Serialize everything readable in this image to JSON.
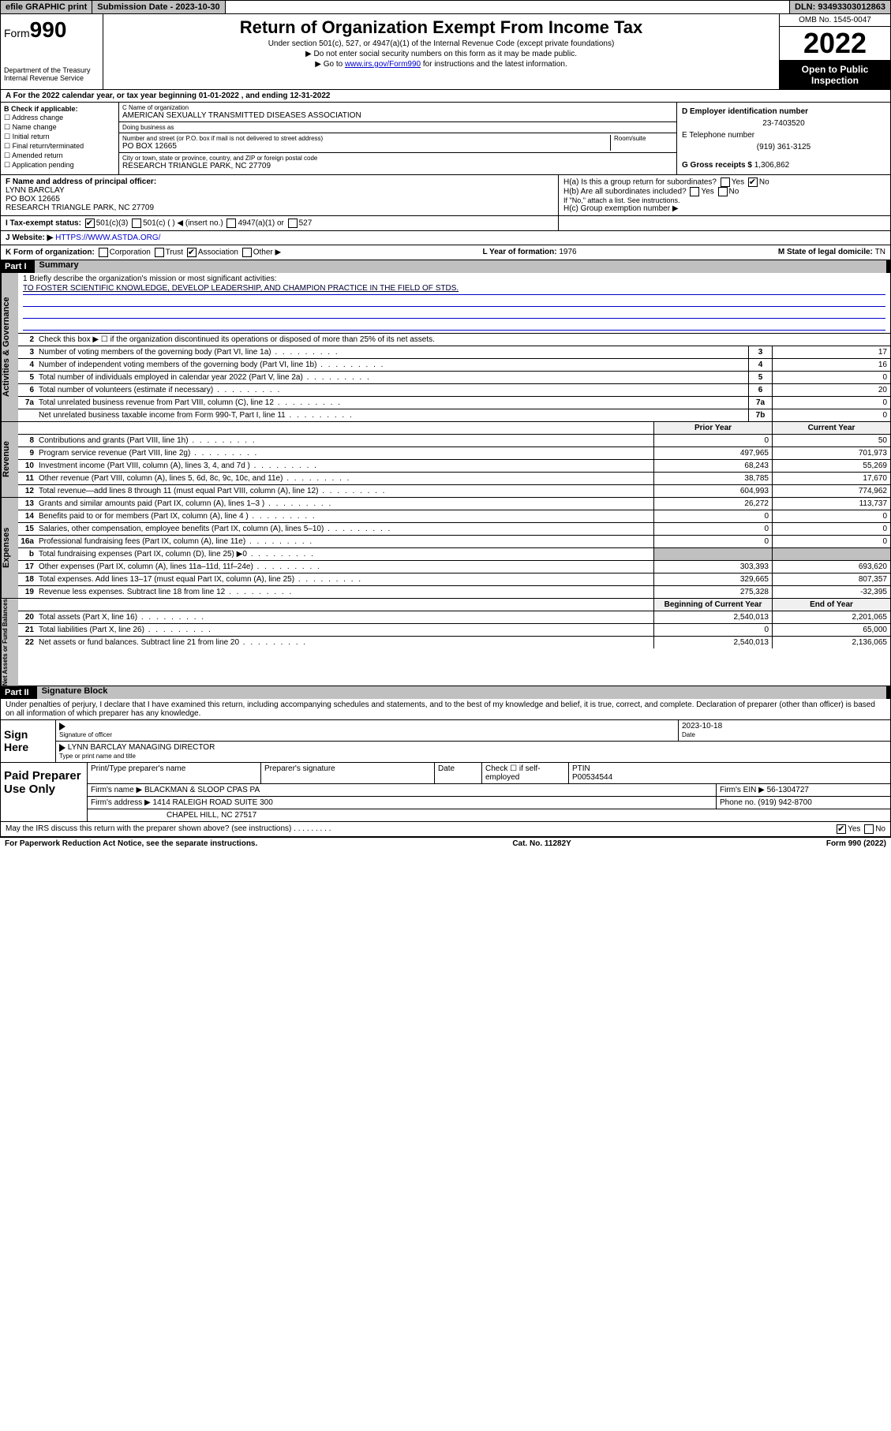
{
  "topbar": {
    "efile": "efile GRAPHIC print",
    "sub_label": "Submission Date - ",
    "sub_date": "2023-10-30",
    "dln_label": "DLN: ",
    "dln": "93493303012863"
  },
  "header": {
    "form_prefix": "Form",
    "form_num": "990",
    "dept": "Department of the Treasury\nInternal Revenue Service",
    "title": "Return of Organization Exempt From Income Tax",
    "subtitle": "Under section 501(c), 527, or 4947(a)(1) of the Internal Revenue Code (except private foundations)",
    "note1": "▶ Do not enter social security numbers on this form as it may be made public.",
    "note2_a": "▶ Go to ",
    "note2_link": "www.irs.gov/Form990",
    "note2_b": " for instructions and the latest information.",
    "omb": "OMB No. 1545-0047",
    "year": "2022",
    "open": "Open to Public Inspection"
  },
  "rowA": "A For the 2022 calendar year, or tax year beginning 01-01-2022   , and ending 12-31-2022",
  "B": {
    "hdr": "B Check if applicable:",
    "items": [
      "☐ Address change",
      "☐ Name change",
      "☐ Initial return",
      "☐ Final return/terminated",
      "☐ Amended return",
      "☐ Application pending"
    ]
  },
  "C": {
    "name_lbl": "C Name of organization",
    "name": "AMERICAN SEXUALLY TRANSMITTED DISEASES ASSOCIATION",
    "dba_lbl": "Doing business as",
    "dba": "",
    "addr_lbl": "Number and street (or P.O. box if mail is not delivered to street address)",
    "room_lbl": "Room/suite",
    "addr": "PO BOX 12665",
    "city_lbl": "City or town, state or province, country, and ZIP or foreign postal code",
    "city": "RESEARCH TRIANGLE PARK, NC  27709"
  },
  "DE": {
    "d_lbl": "D Employer identification number",
    "ein": "23-7403520",
    "e_lbl": "E Telephone number",
    "phone": "(919) 361-3125",
    "g_lbl": "G Gross receipts $ ",
    "g_val": "1,306,862"
  },
  "F": {
    "lbl": "F Name and address of principal officer:",
    "name": "LYNN BARCLAY",
    "addr1": "PO BOX 12665",
    "addr2": "RESEARCH TRIANGLE PARK, NC  27709"
  },
  "H": {
    "a": "H(a)  Is this a group return for subordinates?",
    "a_yes": "Yes",
    "a_no": "No",
    "b": "H(b)  Are all subordinates included?",
    "b_note": "If \"No,\" attach a list. See instructions.",
    "c": "H(c)  Group exemption number ▶"
  },
  "I": {
    "lbl": "I   Tax-exempt status:",
    "o1": "501(c)(3)",
    "o2": "501(c) (  ) ◀ (insert no.)",
    "o3": "4947(a)(1) or",
    "o4": "527"
  },
  "J": {
    "lbl": "J   Website: ▶ ",
    "url": "HTTPS://WWW.ASTDA.ORG/"
  },
  "K": {
    "lbl": "K Form of organization:",
    "o1": "Corporation",
    "o2": "Trust",
    "o3": "Association",
    "o4": "Other ▶"
  },
  "L": {
    "lbl": "L Year of formation: ",
    "val": "1976"
  },
  "M": {
    "lbl": "M State of legal domicile: ",
    "val": "TN"
  },
  "part1": {
    "num": "Part I",
    "title": "Summary"
  },
  "mission": {
    "lbl": "1   Briefly describe the organization's mission or most significant activities:",
    "txt": "TO FOSTER SCIENTIFIC KNOWLEDGE, DEVELOP LEADERSHIP, AND CHAMPION PRACTICE IN THE FIELD OF STDS."
  },
  "line2": "Check this box ▶ ☐  if the organization discontinued its operations or disposed of more than 25% of its net assets.",
  "group_ag": {
    "label": "Activities & Governance",
    "rows": [
      {
        "n": "3",
        "t": "Number of voting members of the governing body (Part VI, line 1a)",
        "b": "3",
        "v": "17"
      },
      {
        "n": "4",
        "t": "Number of independent voting members of the governing body (Part VI, line 1b)",
        "b": "4",
        "v": "16"
      },
      {
        "n": "5",
        "t": "Total number of individuals employed in calendar year 2022 (Part V, line 2a)",
        "b": "5",
        "v": "0"
      },
      {
        "n": "6",
        "t": "Total number of volunteers (estimate if necessary)",
        "b": "6",
        "v": "20"
      },
      {
        "n": "7a",
        "t": "Total unrelated business revenue from Part VIII, column (C), line 12",
        "b": "7a",
        "v": "0"
      },
      {
        "n": "",
        "t": "Net unrelated business taxable income from Form 990-T, Part I, line 11",
        "b": "7b",
        "v": "0"
      }
    ]
  },
  "col_hdr": {
    "prior": "Prior Year",
    "curr": "Current Year"
  },
  "group_rev": {
    "label": "Revenue",
    "rows": [
      {
        "n": "8",
        "t": "Contributions and grants (Part VIII, line 1h)",
        "p": "0",
        "c": "50"
      },
      {
        "n": "9",
        "t": "Program service revenue (Part VIII, line 2g)",
        "p": "497,965",
        "c": "701,973"
      },
      {
        "n": "10",
        "t": "Investment income (Part VIII, column (A), lines 3, 4, and 7d )",
        "p": "68,243",
        "c": "55,269"
      },
      {
        "n": "11",
        "t": "Other revenue (Part VIII, column (A), lines 5, 6d, 8c, 9c, 10c, and 11e)",
        "p": "38,785",
        "c": "17,670"
      },
      {
        "n": "12",
        "t": "Total revenue—add lines 8 through 11 (must equal Part VIII, column (A), line 12)",
        "p": "604,993",
        "c": "774,962"
      }
    ]
  },
  "group_exp": {
    "label": "Expenses",
    "rows": [
      {
        "n": "13",
        "t": "Grants and similar amounts paid (Part IX, column (A), lines 1–3 )",
        "p": "26,272",
        "c": "113,737"
      },
      {
        "n": "14",
        "t": "Benefits paid to or for members (Part IX, column (A), line 4 )",
        "p": "0",
        "c": "0"
      },
      {
        "n": "15",
        "t": "Salaries, other compensation, employee benefits (Part IX, column (A), lines 5–10)",
        "p": "0",
        "c": "0"
      },
      {
        "n": "16a",
        "t": "Professional fundraising fees (Part IX, column (A), line 11e)",
        "p": "0",
        "c": "0"
      },
      {
        "n": "b",
        "t": "Total fundraising expenses (Part IX, column (D), line 25) ▶0",
        "p": "",
        "c": "",
        "shade": true
      },
      {
        "n": "17",
        "t": "Other expenses (Part IX, column (A), lines 11a–11d, 11f–24e)",
        "p": "303,393",
        "c": "693,620"
      },
      {
        "n": "18",
        "t": "Total expenses. Add lines 13–17 (must equal Part IX, column (A), line 25)",
        "p": "329,665",
        "c": "807,357"
      },
      {
        "n": "19",
        "t": "Revenue less expenses. Subtract line 18 from line 12",
        "p": "275,328",
        "c": "-32,395"
      }
    ]
  },
  "col_hdr2": {
    "prior": "Beginning of Current Year",
    "curr": "End of Year"
  },
  "group_na": {
    "label": "Net Assets or Fund Balances",
    "rows": [
      {
        "n": "20",
        "t": "Total assets (Part X, line 16)",
        "p": "2,540,013",
        "c": "2,201,065"
      },
      {
        "n": "21",
        "t": "Total liabilities (Part X, line 26)",
        "p": "0",
        "c": "65,000"
      },
      {
        "n": "22",
        "t": "Net assets or fund balances. Subtract line 21 from line 20",
        "p": "2,540,013",
        "c": "2,136,065"
      }
    ]
  },
  "part2": {
    "num": "Part II",
    "title": "Signature Block"
  },
  "sig_intro": "Under penalties of perjury, I declare that I have examined this return, including accompanying schedules and statements, and to the best of my knowledge and belief, it is true, correct, and complete. Declaration of preparer (other than officer) is based on all information of which preparer has any knowledge.",
  "sign": {
    "lbl": "Sign Here",
    "sig_lbl": "Signature of officer",
    "date_lbl": "Date",
    "date": "2023-10-18",
    "name": "LYNN BARCLAY MANAGING DIRECTOR",
    "name_lbl": "Type or print name and title"
  },
  "prep": {
    "lbl": "Paid Preparer Use Only",
    "r1": {
      "c1": "Print/Type preparer's name",
      "c2": "Preparer's signature",
      "c3": "Date",
      "c4a": "Check ☐ if self-employed",
      "c5a": "PTIN",
      "c5b": "P00534544"
    },
    "r2": {
      "a": "Firm's name    ▶ ",
      "b": "BLACKMAN & SLOOP CPAS PA",
      "c": "Firm's EIN ▶ ",
      "d": "56-1304727"
    },
    "r3": {
      "a": "Firm's address ▶ ",
      "b": "1414 RALEIGH ROAD SUITE 300",
      "c": "Phone no. ",
      "d": "(919) 942-8700"
    },
    "r4": "CHAPEL HILL, NC  27517"
  },
  "may": {
    "txt": "May the IRS discuss this return with the preparer shown above? (see instructions)",
    "yes": "Yes",
    "no": "No"
  },
  "footer": {
    "a": "For Paperwork Reduction Act Notice, see the separate instructions.",
    "b": "Cat. No. 11282Y",
    "c": "Form 990 (2022)"
  }
}
